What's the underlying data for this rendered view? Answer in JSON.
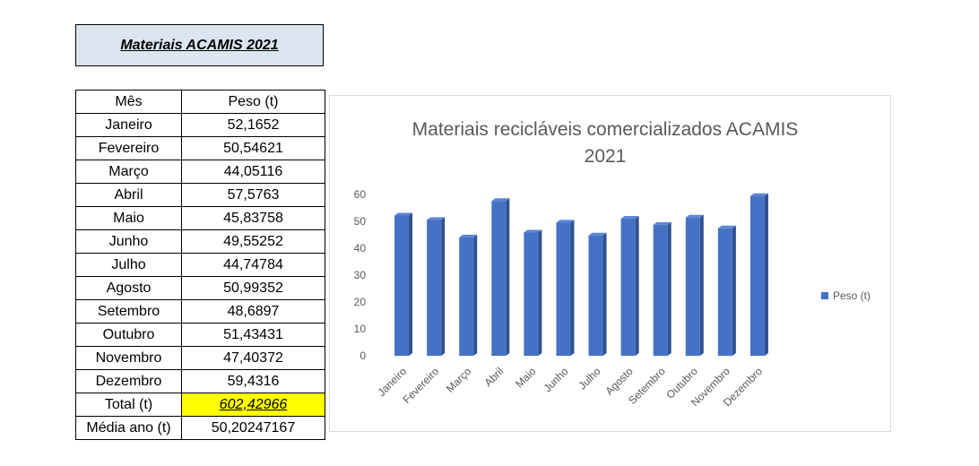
{
  "sheet_title": "Materiais ACAMIS 2021",
  "table": {
    "header": [
      "Mês",
      "Peso (t)"
    ],
    "rows": [
      [
        "Janeiro",
        "52,1652"
      ],
      [
        "Fevereiro",
        "50,54621"
      ],
      [
        "Março",
        "44,05116"
      ],
      [
        "Abril",
        "57,5763"
      ],
      [
        "Maio",
        "45,83758"
      ],
      [
        "Junho",
        "49,55252"
      ],
      [
        "Julho",
        "44,74784"
      ],
      [
        "Agosto",
        "50,99352"
      ],
      [
        "Setembro",
        "48,6897"
      ],
      [
        "Outubro",
        "51,43431"
      ],
      [
        "Novembro",
        "47,40372"
      ],
      [
        "Dezembro",
        "59,4316"
      ]
    ],
    "total_label": "Total (t)",
    "total_value": "602,42966",
    "avg_label": "Média ano (t)",
    "avg_value": "50,20247167"
  },
  "colors": {
    "bar": "#4472c4",
    "bar_dark": "#2f528f",
    "total_highlight": "#ffff00",
    "title_fill": "#dce6f1"
  },
  "chart_data": {
    "type": "bar",
    "title_lines": [
      "Materiais recicláveis comercializados ACAMIS",
      "2021"
    ],
    "categories": [
      "Janeiro",
      "Fevereiro",
      "Março",
      "Abril",
      "Maio",
      "Junho",
      "Julho",
      "Agosto",
      "Setembro",
      "Outubro",
      "Novembro",
      "Dezembro"
    ],
    "series": [
      {
        "name": "Peso (t)",
        "values": [
          52.1652,
          50.54621,
          44.05116,
          57.5763,
          45.83758,
          49.55252,
          44.74784,
          50.99352,
          48.6897,
          51.43431,
          47.40372,
          59.4316
        ]
      }
    ],
    "ylim": [
      0,
      60
    ],
    "yticks": [
      0,
      10,
      20,
      30,
      40,
      50,
      60
    ],
    "grid": false,
    "legend_position": "right",
    "style": "3d-column"
  }
}
